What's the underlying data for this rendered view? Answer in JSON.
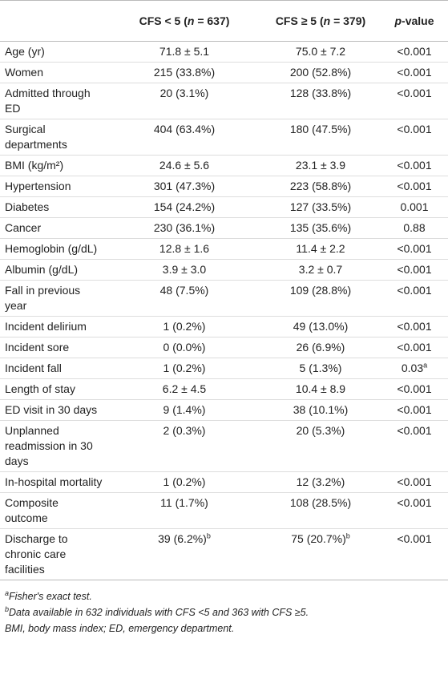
{
  "header": {
    "columns": [
      {
        "pre": "CFS < 5 (",
        "italic": "n",
        "post": " = 637)"
      },
      {
        "pre": "CFS ≥ 5 (",
        "italic": "n",
        "post": " = 379)"
      },
      {
        "italic": "p",
        "post": "-value"
      }
    ]
  },
  "table": {
    "rows": [
      [
        "Age (yr)",
        "71.8 ± 5.1",
        "75.0 ± 7.2",
        "<0.001"
      ],
      [
        "Women",
        "215 (33.8%)",
        "200 (52.8%)",
        "<0.001"
      ],
      [
        "Admitted through ED",
        "20 (3.1%)",
        "128 (33.8%)",
        "<0.001"
      ],
      [
        "Surgical departments",
        "404 (63.4%)",
        "180 (47.5%)",
        "<0.001"
      ],
      [
        "BMI (kg/m²)",
        "24.6 ± 5.6",
        "23.1 ± 3.9",
        "<0.001"
      ],
      [
        "Hypertension",
        "301 (47.3%)",
        "223 (58.8%)",
        "<0.001"
      ],
      [
        "Diabetes",
        "154 (24.2%)",
        "127 (33.5%)",
        "0.001"
      ],
      [
        "Cancer",
        "230 (36.1%)",
        "135 (35.6%)",
        "0.88"
      ],
      [
        "Hemoglobin (g/dL)",
        "12.8 ± 1.6",
        "11.4 ± 2.2",
        "<0.001"
      ],
      [
        "Albumin (g/dL)",
        "3.9 ± 3.0",
        "3.2 ± 0.7",
        "<0.001"
      ],
      [
        "Fall in previous year",
        "48 (7.5%)",
        "109 (28.8%)",
        "<0.001"
      ],
      [
        "Incident delirium",
        "1 (0.2%)",
        "49 (13.0%)",
        "<0.001"
      ],
      [
        "Incident sore",
        "0 (0.0%)",
        "26 (6.9%)",
        "<0.001"
      ],
      [
        "Incident fall",
        "1 (0.2%)",
        "5 (1.3%)",
        {
          "text": "0.03",
          "sup": "a"
        }
      ],
      [
        "Length of stay",
        "6.2 ± 4.5",
        "10.4 ± 8.9",
        "<0.001"
      ],
      [
        "ED visit in 30 days",
        "9 (1.4%)",
        "38 (10.1%)",
        "<0.001"
      ],
      [
        "Unplanned readmission in 30 days",
        "2 (0.3%)",
        "20 (5.3%)",
        "<0.001"
      ],
      [
        "In-hospital mortality",
        "1 (0.2%)",
        "12 (3.2%)",
        "<0.001"
      ],
      [
        "Composite outcome",
        "11 (1.7%)",
        "108 (28.5%)",
        "<0.001"
      ],
      [
        "Discharge to chronic care facilities",
        {
          "text": "39 (6.2%)",
          "sup": "b"
        },
        {
          "text": "75 (20.7%)",
          "sup": "b"
        },
        "<0.001"
      ]
    ]
  },
  "footnotes": [
    {
      "sup": "a",
      "text": "Fisher's exact test."
    },
    {
      "sup": "b",
      "text": "Data available in 632 individuals with CFS <5 and 363 with CFS ≥5."
    },
    {
      "text": "BMI, body mass index; ED, emergency department."
    }
  ]
}
